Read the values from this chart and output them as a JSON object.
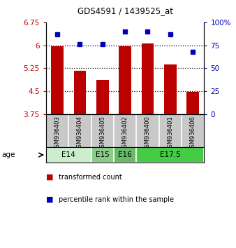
{
  "title": "GDS4591 / 1439525_at",
  "samples": [
    "GSM936403",
    "GSM936404",
    "GSM936405",
    "GSM936402",
    "GSM936400",
    "GSM936401",
    "GSM936406"
  ],
  "transformed_counts": [
    5.97,
    5.17,
    4.87,
    5.96,
    6.06,
    5.37,
    4.47
  ],
  "percentile_ranks": [
    87,
    76,
    76,
    90,
    90,
    87,
    68
  ],
  "ylim_left": [
    3.75,
    6.75
  ],
  "ylim_right": [
    0,
    100
  ],
  "yticks_left": [
    3.75,
    4.5,
    5.25,
    6.0,
    6.75
  ],
  "yticks_right": [
    0,
    25,
    50,
    75,
    100
  ],
  "ytick_labels_left": [
    "3.75",
    "4.5",
    "5.25",
    "6",
    "6.75"
  ],
  "ytick_labels_right": [
    "0",
    "25",
    "50",
    "75",
    "100%"
  ],
  "bar_color": "#bb0000",
  "dot_color": "#0000bb",
  "hgrid_vals": [
    4.5,
    5.25,
    6.0
  ],
  "age_groups": [
    {
      "label": "E14",
      "indices": [
        0,
        1
      ],
      "color": "#cceecc"
    },
    {
      "label": "E15",
      "indices": [
        2
      ],
      "color": "#88cc88"
    },
    {
      "label": "E16",
      "indices": [
        3
      ],
      "color": "#66bb66"
    },
    {
      "label": "E17.5",
      "indices": [
        4,
        5,
        6
      ],
      "color": "#44cc44"
    }
  ],
  "sample_area_color": "#c8c8c8",
  "bg_color": "#ffffff",
  "legend_bar_label": "transformed count",
  "legend_dot_label": "percentile rank within the sample",
  "age_label": "age"
}
